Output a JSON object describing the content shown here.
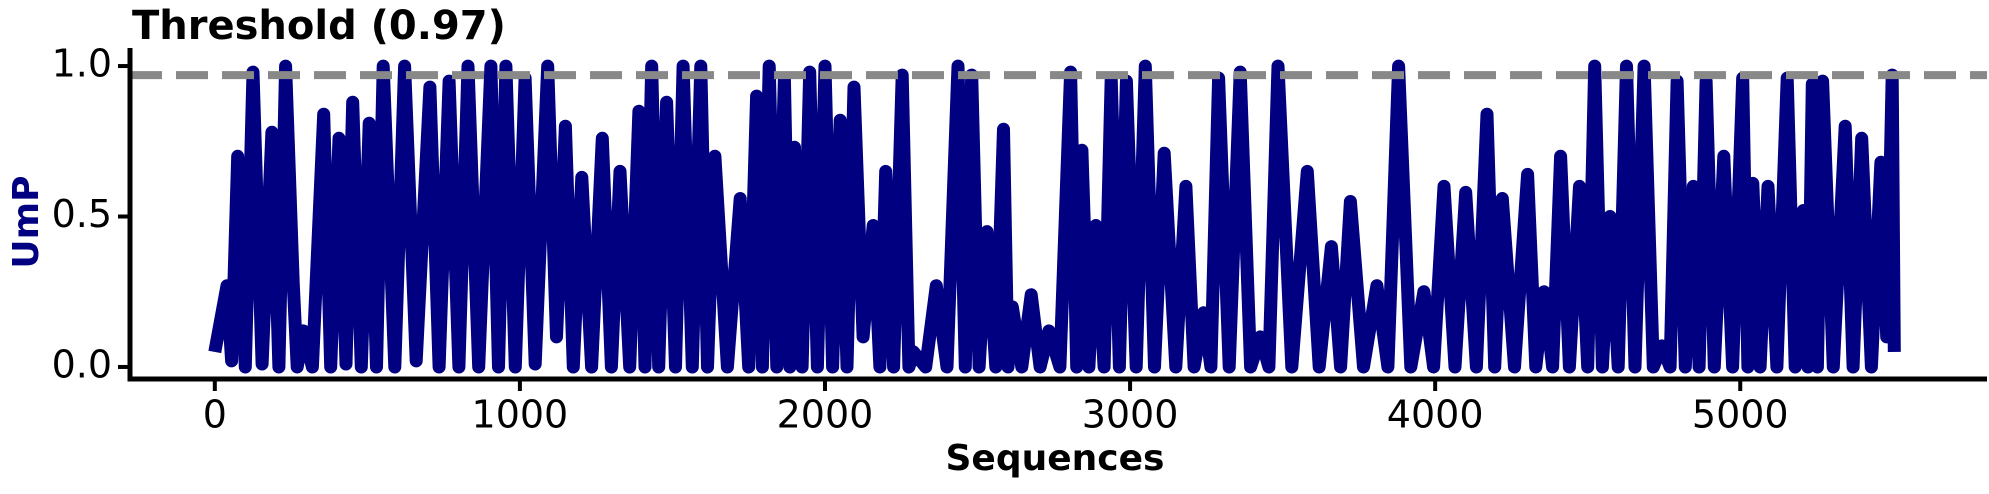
{
  "chart_data": {
    "type": "line",
    "title": "Threshold (0.97)",
    "x_label": "Sequences",
    "y_label": "UmP",
    "color": "#000080",
    "threshold": 0.97,
    "threshold_color": "#888888",
    "xlim": [
      -278,
      5776
    ],
    "ylim": [
      -0.04,
      1.06
    ],
    "xticks": [
      0,
      1000,
      2000,
      3000,
      4000,
      5000
    ],
    "yticks": [
      {
        "value": 0,
        "label": "0.0"
      },
      {
        "value": 0.5,
        "label": "0.5"
      },
      {
        "value": 1,
        "label": "1.0"
      }
    ],
    "x": [
      0,
      40,
      55,
      75,
      100,
      125,
      155,
      187,
      210,
      232,
      257,
      270,
      290,
      320,
      357,
      380,
      407,
      430,
      452,
      480,
      506,
      530,
      552,
      590,
      622,
      660,
      705,
      735,
      768,
      800,
      830,
      865,
      905,
      930,
      954,
      985,
      1017,
      1050,
      1091,
      1120,
      1149,
      1175,
      1203,
      1235,
      1270,
      1300,
      1328,
      1360,
      1390,
      1410,
      1432,
      1455,
      1481,
      1510,
      1535,
      1565,
      1593,
      1615,
      1639,
      1680,
      1722,
      1750,
      1776,
      1795,
      1817,
      1842,
      1867,
      1885,
      1900,
      1925,
      1950,
      1975,
      2000,
      2025,
      2050,
      2072,
      2095,
      2125,
      2158,
      2180,
      2199,
      2225,
      2253,
      2275,
      2290,
      2330,
      2365,
      2400,
      2436,
      2460,
      2481,
      2505,
      2531,
      2560,
      2585,
      2600,
      2614,
      2645,
      2676,
      2705,
      2734,
      2770,
      2805,
      2825,
      2842,
      2865,
      2888,
      2915,
      2938,
      2965,
      2988,
      3020,
      3050,
      3080,
      3112,
      3150,
      3183,
      3210,
      3241,
      3265,
      3290,
      3325,
      3361,
      3395,
      3427,
      3455,
      3485,
      3530,
      3581,
      3620,
      3660,
      3690,
      3722,
      3765,
      3809,
      3845,
      3880,
      3920,
      3963,
      3995,
      4029,
      4065,
      4100,
      4135,
      4170,
      4195,
      4220,
      4260,
      4303,
      4330,
      4357,
      4385,
      4411,
      4440,
      4473,
      4500,
      4523,
      4548,
      4573,
      4600,
      4627,
      4655,
      4685,
      4715,
      4743,
      4770,
      4793,
      4820,
      4846,
      4865,
      4888,
      4915,
      4946,
      4975,
      5008,
      5025,
      5041,
      5065,
      5091,
      5120,
      5154,
      5180,
      5207,
      5222,
      5236,
      5253,
      5270,
      5305,
      5344,
      5370,
      5398,
      5430,
      5461,
      5480,
      5498,
      5505
    ],
    "values": [
      0.05,
      0.27,
      0.02,
      0.7,
      0,
      0.98,
      0.01,
      0.78,
      0,
      1.0,
      0.28,
      0,
      0.12,
      0,
      0.84,
      0,
      0.76,
      0.01,
      0.88,
      0,
      0.81,
      0,
      1.0,
      0,
      1.0,
      0.02,
      0.93,
      0,
      0.95,
      0,
      1.0,
      0,
      1.0,
      0,
      1.0,
      0,
      0.96,
      0.01,
      1.0,
      0.1,
      0.8,
      0,
      0.63,
      0,
      0.76,
      0,
      0.65,
      0,
      0.85,
      0,
      1.0,
      0,
      0.88,
      0,
      1.0,
      0,
      1.0,
      0,
      0.7,
      0,
      0.56,
      0,
      0.9,
      0,
      1.0,
      0,
      0.96,
      0,
      0.73,
      0,
      0.98,
      0,
      1.0,
      0,
      0.82,
      0,
      0.93,
      0.1,
      0.47,
      0,
      0.65,
      0,
      0.97,
      0,
      0.05,
      0,
      0.27,
      0,
      1.0,
      0,
      0.97,
      0,
      0.45,
      0,
      0.79,
      0,
      0.2,
      0,
      0.24,
      0,
      0.12,
      0,
      0.98,
      0,
      0.72,
      0,
      0.47,
      0,
      0.96,
      0,
      0.95,
      0,
      1.0,
      0,
      0.71,
      0,
      0.6,
      0,
      0.18,
      0,
      0.96,
      0,
      0.98,
      0,
      0.1,
      0,
      1.0,
      0,
      0.65,
      0,
      0.4,
      0,
      0.55,
      0,
      0.27,
      0,
      1.0,
      0,
      0.25,
      0,
      0.6,
      0,
      0.58,
      0,
      0.84,
      0,
      0.56,
      0,
      0.64,
      0,
      0.25,
      0,
      0.7,
      0,
      0.6,
      0,
      1.0,
      0,
      0.5,
      0,
      1.0,
      0,
      1.0,
      0,
      0.07,
      0,
      0.95,
      0,
      0.6,
      0,
      0.95,
      0,
      0.7,
      0,
      0.96,
      0,
      0.61,
      0,
      0.6,
      0,
      0.96,
      0,
      0.52,
      0,
      0.94,
      0,
      0.95,
      0,
      0.8,
      0,
      0.76,
      0,
      0.68,
      0.1,
      0.97,
      0.05
    ]
  }
}
